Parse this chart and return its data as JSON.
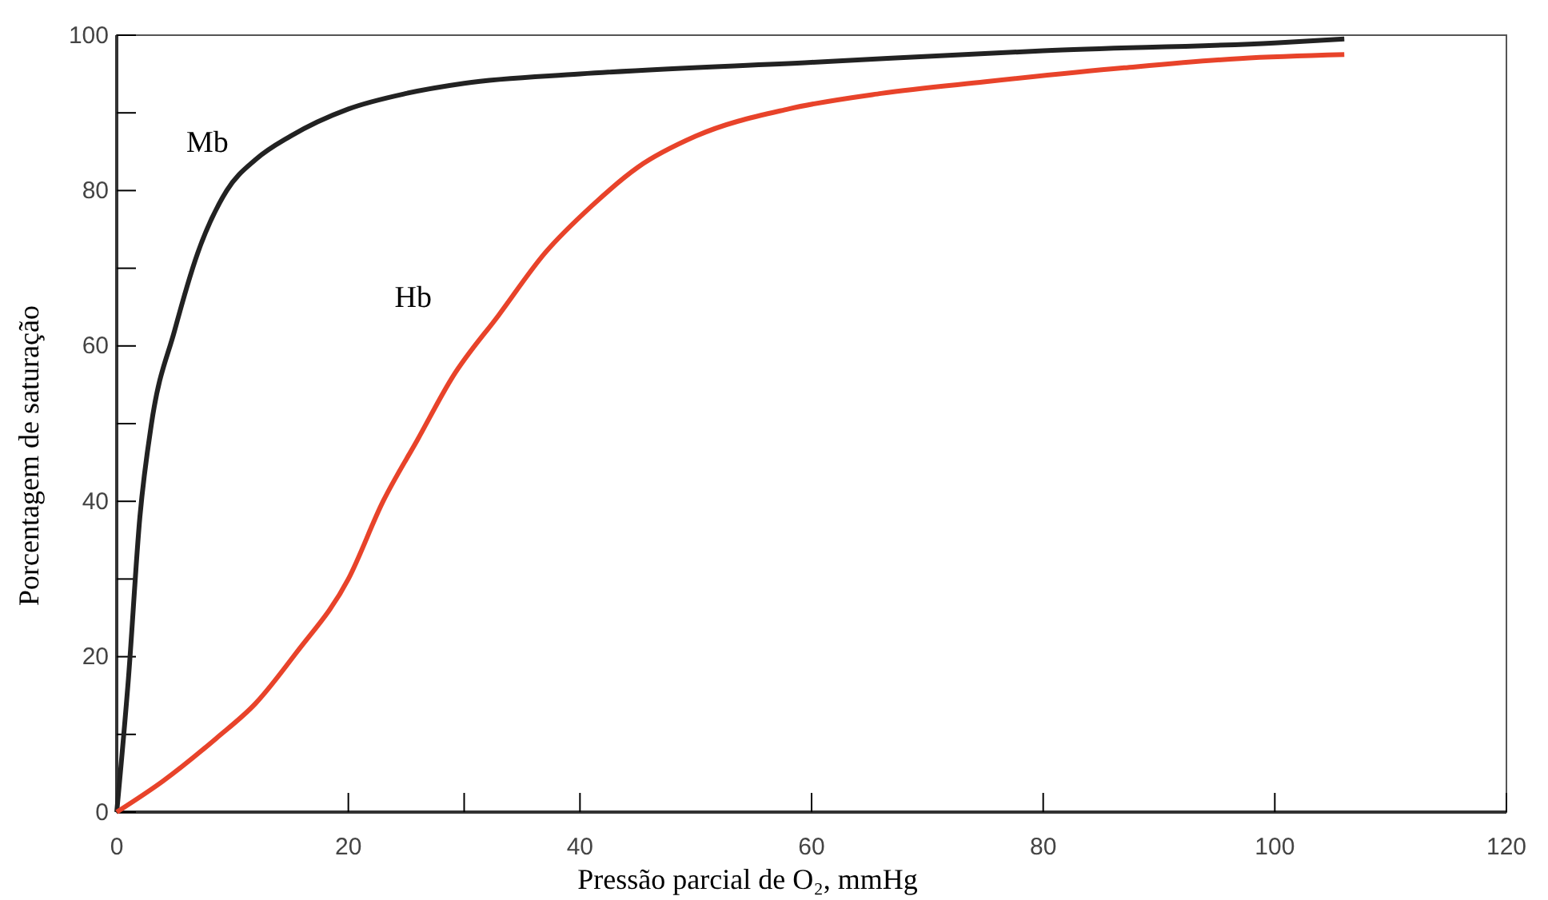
{
  "chart_data": {
    "type": "line",
    "xlabel": "Pressão parcial de O₂, mmHg",
    "ylabel": "Porcentagem de saturação",
    "xlim": [
      0,
      120
    ],
    "ylim": [
      0,
      100
    ],
    "xticks": [
      0,
      20,
      {
        "value": 30,
        "label": null
      },
      40,
      60,
      80,
      100,
      120
    ],
    "yticks": [
      0,
      {
        "value": 10,
        "label": null
      },
      20,
      {
        "value": 30,
        "label": null
      },
      40,
      {
        "value": 50,
        "label": null
      },
      60,
      {
        "value": 70,
        "label": null
      },
      80,
      {
        "value": 90,
        "label": null
      },
      100
    ],
    "grid": false,
    "legend": false,
    "marker": "none",
    "line_style": "solid",
    "series": [
      {
        "name": "Mb",
        "color": "#222222",
        "x": [
          0,
          1,
          2,
          3,
          5,
          7,
          9.5,
          12,
          15,
          20,
          25,
          30,
          40,
          60,
          80,
          100,
          106
        ],
        "values": [
          0,
          17,
          38,
          50,
          62,
          72,
          80,
          84,
          87,
          90.5,
          92.5,
          93.8,
          95,
          96.5,
          98,
          99,
          99.5
        ]
      },
      {
        "name": "Hb",
        "color": "#e8432a",
        "x": [
          0,
          4,
          8.6,
          12,
          15.5,
          20,
          23,
          26,
          29,
          33,
          37,
          41,
          45,
          50,
          58,
          66,
          75,
          87,
          97,
          106
        ],
        "values": [
          0,
          4,
          9.5,
          14,
          20.5,
          30,
          40,
          48,
          56,
          64,
          72,
          78,
          83,
          87,
          90.5,
          92.5,
          94,
          95.8,
          97,
          97.5
        ]
      }
    ]
  }
}
